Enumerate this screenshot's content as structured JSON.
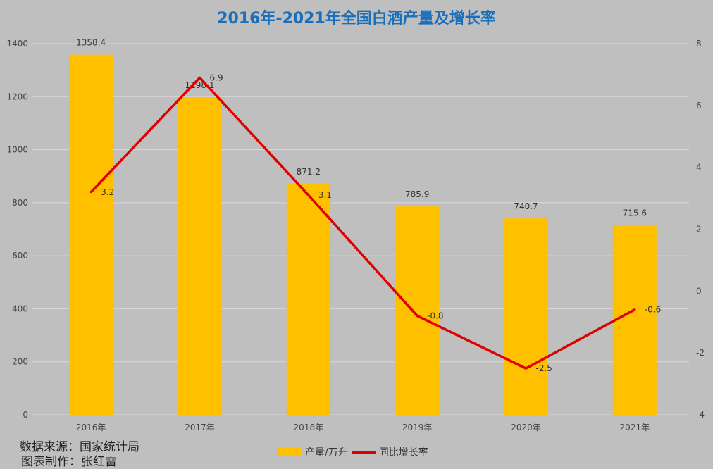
{
  "chart_data": {
    "type": "bar+line",
    "title": "2016年-2021年全国白酒产量及增长率",
    "categories": [
      "2016年",
      "2017年",
      "2018年",
      "2019年",
      "2020年",
      "2021年"
    ],
    "series": [
      {
        "name": "产量/万升",
        "type": "bar",
        "axis": "left",
        "color": "#ffc000",
        "values": [
          1358.4,
          1198.1,
          871.2,
          785.9,
          740.7,
          715.6
        ]
      },
      {
        "name": "同比增长率",
        "type": "line",
        "axis": "right",
        "color": "#e00000",
        "values": [
          3.2,
          6.9,
          3.1,
          -0.8,
          -2.5,
          -0.6
        ]
      }
    ],
    "y_left": {
      "range": [
        0,
        1400
      ],
      "ticks": [
        0,
        200,
        400,
        600,
        800,
        1000,
        1200,
        1400
      ]
    },
    "y_right": {
      "range": [
        -4,
        8
      ],
      "ticks": [
        -4,
        -2,
        0,
        2,
        4,
        6,
        8
      ]
    },
    "grid": true,
    "legend": "bottom"
  },
  "footer": {
    "source": "数据来源：国家统计局",
    "author": "图表制作：张红雷"
  }
}
